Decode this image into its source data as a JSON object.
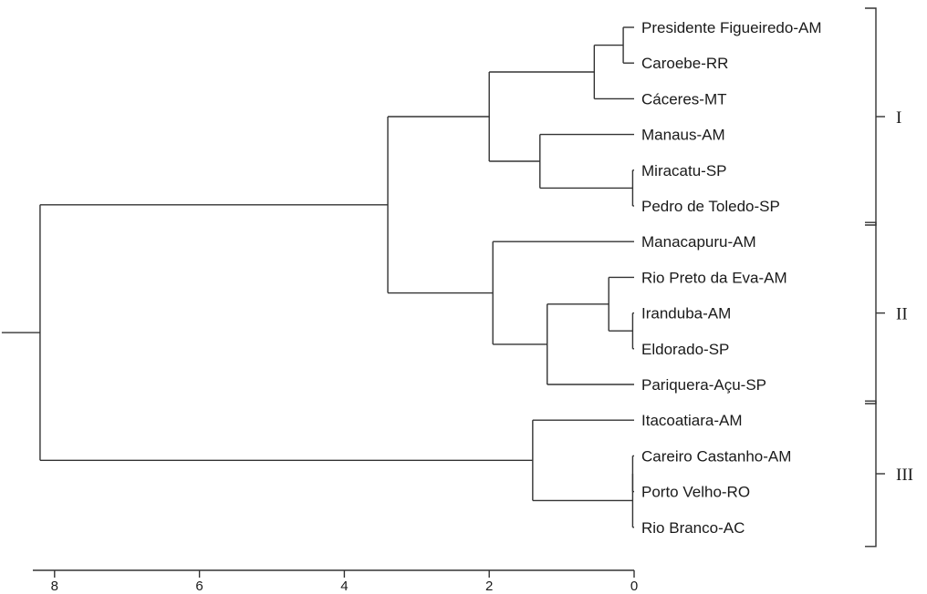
{
  "chart_data": {
    "type": "dendrogram",
    "orientation": "right-to-left",
    "axis": {
      "ticks": [
        8,
        6,
        4,
        2,
        0
      ],
      "range": [
        8.3,
        0
      ]
    },
    "leaves": [
      "Presidente Figueiredo-AM",
      "Caroebe-RR",
      "Cáceres-MT",
      "Manaus-AM",
      "Miracatu-SP",
      "Pedro de Toledo-SP",
      "Manacapuru-AM",
      "Rio Preto da Eva-AM",
      "Iranduba-AM",
      "Eldorado-SP",
      "Pariquera-Açu-SP",
      "Itacoatiara-AM",
      "Careiro Castanho-AM",
      "Porto Velho-RO",
      "Rio Branco-AC"
    ],
    "merges": [
      {
        "id": "n1",
        "children": [
          "L0",
          "L1"
        ],
        "height": 0.15
      },
      {
        "id": "n2",
        "children": [
          "n1",
          "L2"
        ],
        "height": 0.55
      },
      {
        "id": "n3",
        "children": [
          "L4",
          "L5"
        ],
        "height": 0.02
      },
      {
        "id": "n4",
        "children": [
          "L3",
          "n3"
        ],
        "height": 1.3
      },
      {
        "id": "n5",
        "children": [
          "n2",
          "n4"
        ],
        "height": 2.0
      },
      {
        "id": "n6",
        "children": [
          "L8",
          "L9"
        ],
        "height": 0.02
      },
      {
        "id": "n7",
        "children": [
          "L7",
          "n6"
        ],
        "height": 0.35
      },
      {
        "id": "n8",
        "children": [
          "n7",
          "L10"
        ],
        "height": 1.2
      },
      {
        "id": "n9",
        "children": [
          "L6",
          "n8"
        ],
        "height": 1.95
      },
      {
        "id": "n10",
        "children": [
          "n5",
          "n9"
        ],
        "height": 3.4
      },
      {
        "id": "n11",
        "children": [
          "L12",
          "L13"
        ],
        "height": 0.02
      },
      {
        "id": "n12",
        "children": [
          "n11",
          "L14"
        ],
        "height": 0.02
      },
      {
        "id": "n13",
        "children": [
          "L11",
          "n12"
        ],
        "height": 1.4
      },
      {
        "id": "n14",
        "children": [
          "n10",
          "n13"
        ],
        "height": 8.2
      }
    ],
    "groups": [
      {
        "label": "I",
        "first_leaf": 0,
        "last_leaf": 5
      },
      {
        "label": "II",
        "first_leaf": 6,
        "last_leaf": 10
      },
      {
        "label": "III",
        "first_leaf": 11,
        "last_leaf": 14
      }
    ]
  }
}
